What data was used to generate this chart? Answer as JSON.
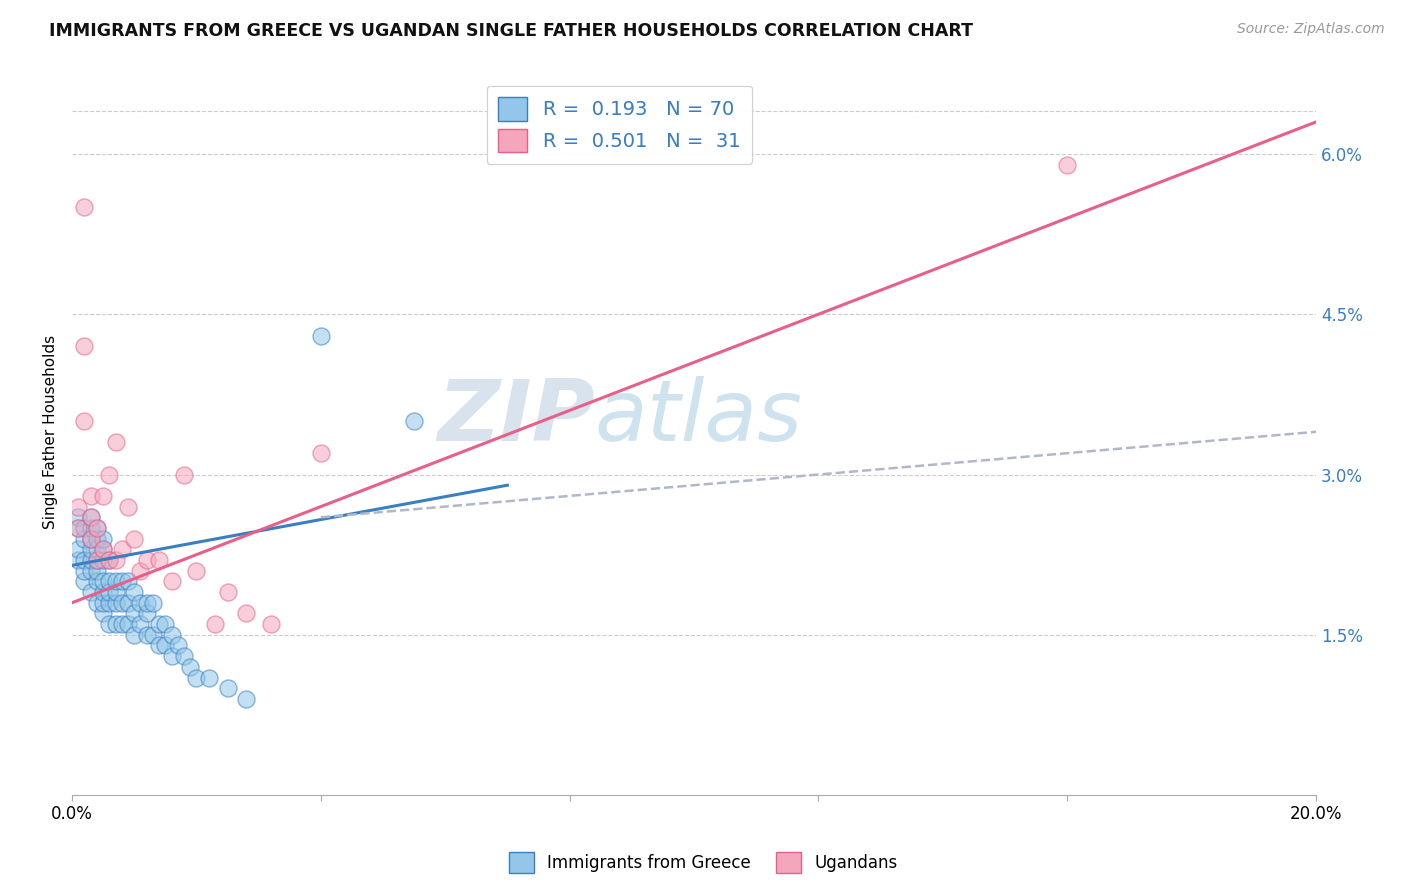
{
  "title": "IMMIGRANTS FROM GREECE VS UGANDAN SINGLE FATHER HOUSEHOLDS CORRELATION CHART",
  "source": "Source: ZipAtlas.com",
  "ylabel": "Single Father Households",
  "x_min": 0.0,
  "x_max": 0.2,
  "y_min": 0.0,
  "y_max": 0.068,
  "x_ticks": [
    0.0,
    0.04,
    0.08,
    0.12,
    0.16,
    0.2
  ],
  "x_tick_labels": [
    "0.0%",
    "",
    "",
    "",
    "",
    "20.0%"
  ],
  "y_ticks_right": [
    0.015,
    0.03,
    0.045,
    0.06
  ],
  "y_tick_labels_right": [
    "1.5%",
    "3.0%",
    "4.5%",
    "6.0%"
  ],
  "legend_label_blue": "R =  0.193   N = 70",
  "legend_label_pink": "R =  0.501   N =  31",
  "legend_label_scatter_blue": "Immigrants from Greece",
  "legend_label_scatter_pink": "Ugandans",
  "blue_color": "#93c6e8",
  "pink_color": "#f4a7bc",
  "blue_line_color": "#3a7fc1",
  "pink_line_color": "#e8608a",
  "dashed_line_color": "#b0b8c8",
  "watermark_zip": "ZIP",
  "watermark_atlas": "atlas",
  "blue_scatter_x": [
    0.001,
    0.001,
    0.001,
    0.001,
    0.002,
    0.002,
    0.002,
    0.002,
    0.002,
    0.003,
    0.003,
    0.003,
    0.003,
    0.003,
    0.003,
    0.003,
    0.004,
    0.004,
    0.004,
    0.004,
    0.004,
    0.004,
    0.004,
    0.005,
    0.005,
    0.005,
    0.005,
    0.005,
    0.005,
    0.005,
    0.006,
    0.006,
    0.006,
    0.006,
    0.006,
    0.007,
    0.007,
    0.007,
    0.007,
    0.008,
    0.008,
    0.008,
    0.009,
    0.009,
    0.009,
    0.01,
    0.01,
    0.01,
    0.011,
    0.011,
    0.012,
    0.012,
    0.012,
    0.013,
    0.013,
    0.014,
    0.014,
    0.015,
    0.015,
    0.016,
    0.016,
    0.017,
    0.018,
    0.019,
    0.02,
    0.022,
    0.025,
    0.028,
    0.04,
    0.055
  ],
  "blue_scatter_y": [
    0.022,
    0.023,
    0.025,
    0.026,
    0.02,
    0.021,
    0.022,
    0.024,
    0.025,
    0.019,
    0.021,
    0.022,
    0.023,
    0.024,
    0.025,
    0.026,
    0.018,
    0.02,
    0.021,
    0.022,
    0.023,
    0.024,
    0.025,
    0.017,
    0.018,
    0.019,
    0.02,
    0.022,
    0.023,
    0.024,
    0.016,
    0.018,
    0.019,
    0.02,
    0.022,
    0.016,
    0.018,
    0.019,
    0.02,
    0.016,
    0.018,
    0.02,
    0.016,
    0.018,
    0.02,
    0.015,
    0.017,
    0.019,
    0.016,
    0.018,
    0.015,
    0.017,
    0.018,
    0.015,
    0.018,
    0.014,
    0.016,
    0.014,
    0.016,
    0.013,
    0.015,
    0.014,
    0.013,
    0.012,
    0.011,
    0.011,
    0.01,
    0.009,
    0.043,
    0.035
  ],
  "pink_scatter_x": [
    0.001,
    0.001,
    0.002,
    0.002,
    0.002,
    0.003,
    0.003,
    0.003,
    0.004,
    0.004,
    0.005,
    0.005,
    0.006,
    0.006,
    0.007,
    0.007,
    0.008,
    0.009,
    0.01,
    0.011,
    0.012,
    0.014,
    0.016,
    0.018,
    0.02,
    0.023,
    0.025,
    0.028,
    0.032,
    0.04,
    0.16
  ],
  "pink_scatter_y": [
    0.025,
    0.027,
    0.035,
    0.042,
    0.055,
    0.024,
    0.026,
    0.028,
    0.022,
    0.025,
    0.023,
    0.028,
    0.022,
    0.03,
    0.022,
    0.033,
    0.023,
    0.027,
    0.024,
    0.021,
    0.022,
    0.022,
    0.02,
    0.03,
    0.021,
    0.016,
    0.019,
    0.017,
    0.016,
    0.032,
    0.059
  ],
  "blue_line_x": [
    0.0,
    0.07
  ],
  "blue_line_y": [
    0.0215,
    0.029
  ],
  "pink_line_x": [
    0.0,
    0.2
  ],
  "pink_line_y": [
    0.018,
    0.063
  ],
  "dashed_line_x": [
    0.04,
    0.2
  ],
  "dashed_line_y": [
    0.026,
    0.034
  ]
}
